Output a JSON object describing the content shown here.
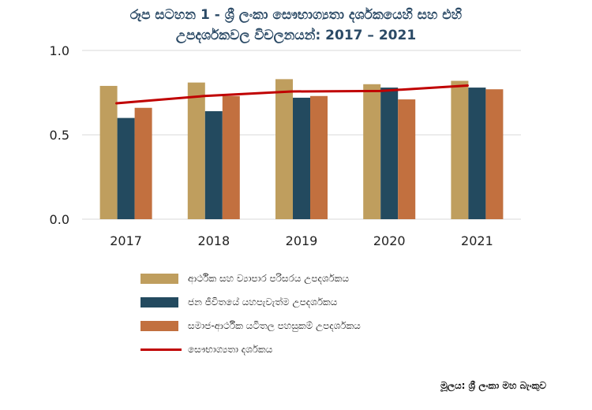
{
  "chart_data": {
    "type": "bar",
    "title_line1": "රූප සටහන 1 - ශ්‍රී ලංකා සෞභාග්‍යතා දර්ශකයෙහි සහ එහි",
    "title_line2": "උපදර්ශකවල විචලනයන්: 2017 – 2021",
    "categories": [
      "2017",
      "2018",
      "2019",
      "2020",
      "2021"
    ],
    "ylim": [
      0,
      1.0
    ],
    "yticks": [
      {
        "value": 0.0,
        "label": "0.0"
      },
      {
        "value": 0.5,
        "label": "0.5"
      },
      {
        "value": 1.0,
        "label": "1.0"
      }
    ],
    "grid": true,
    "series": [
      {
        "name": "ආර්ථික සහ ව්‍යාපාර පරිසරය උපදර්ශකය",
        "kind": "bar",
        "color": "#bf9e5e",
        "values": [
          0.79,
          0.81,
          0.83,
          0.8,
          0.82
        ]
      },
      {
        "name": "ජන ජීවිතයේ යහපැවැත්ම උපදර්ශකය",
        "kind": "bar",
        "color": "#234a5f",
        "values": [
          0.6,
          0.64,
          0.72,
          0.78,
          0.78
        ]
      },
      {
        "name": "සමාජ-ආර්ථික යටිතල පහසුකම් උපදර්ශකය",
        "kind": "bar",
        "color": "#c2703f",
        "values": [
          0.66,
          0.73,
          0.73,
          0.71,
          0.77
        ]
      },
      {
        "name": "සෞභාග්‍යතා දර්ශකය",
        "kind": "line",
        "color": "#c00000",
        "values": [
          0.687,
          0.73,
          0.757,
          0.76,
          0.792
        ]
      }
    ],
    "legend_position": "bottom",
    "source": "මූලය: ශ්‍රී ලංකා මහ බැංකුව"
  }
}
